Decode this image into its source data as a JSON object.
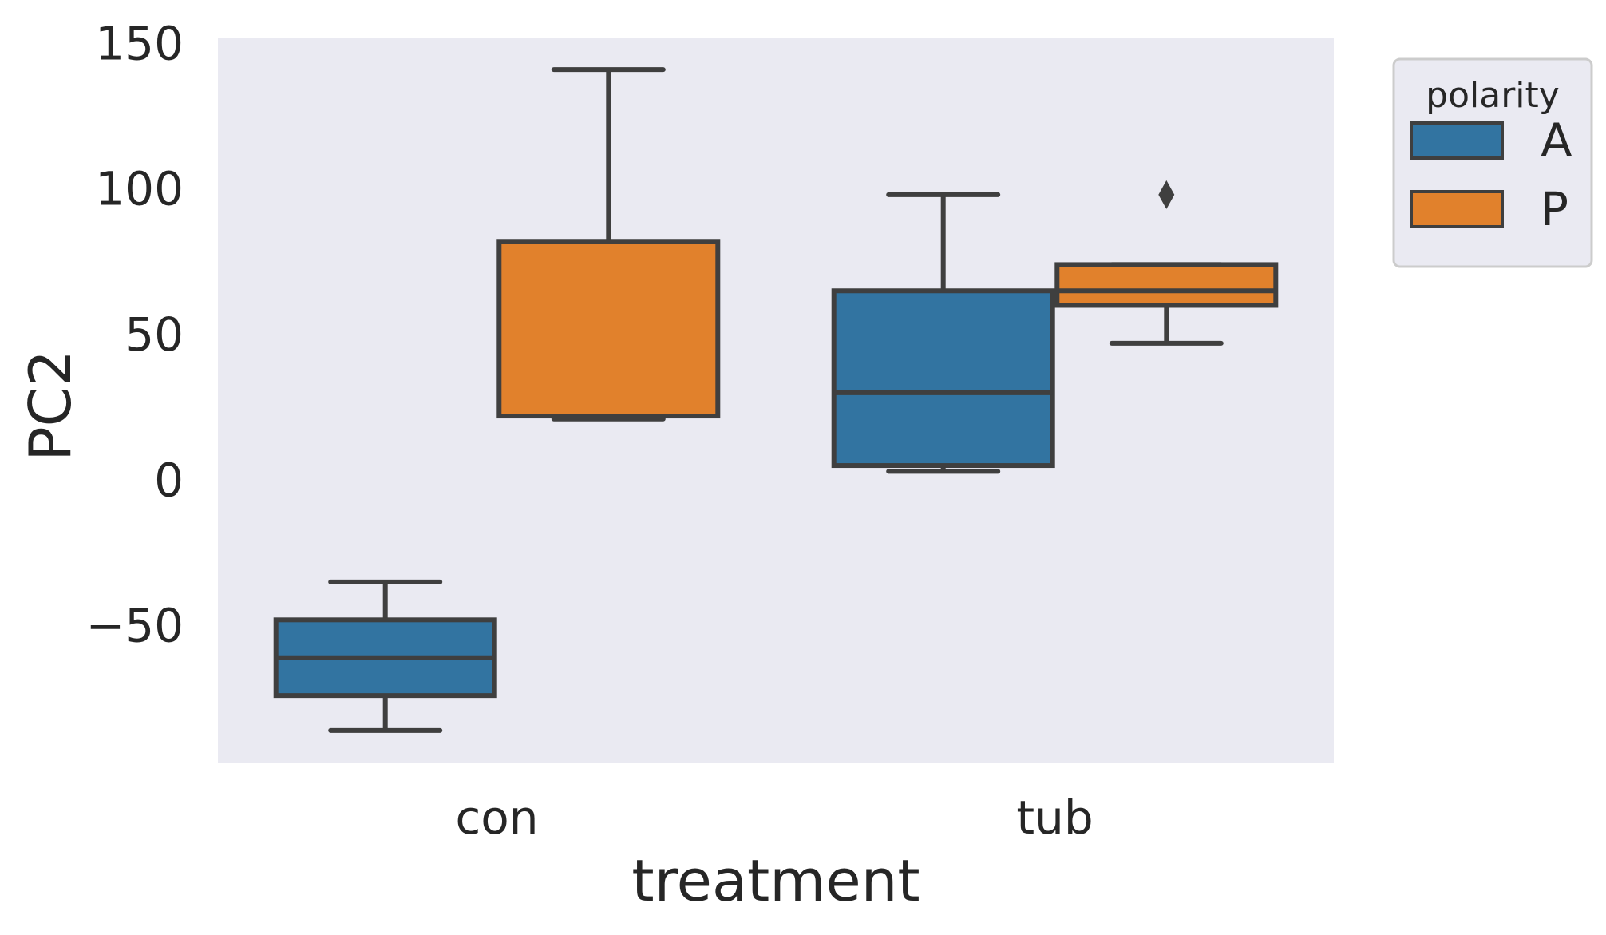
{
  "chart_data": {
    "type": "box",
    "xlabel": "treatment",
    "ylabel": "PC2",
    "categories": [
      "con",
      "tub"
    ],
    "ylim": [
      -97,
      152
    ],
    "yticks": [
      150,
      100,
      50,
      0,
      -50
    ],
    "ytick_labels": [
      "150",
      "100",
      "50",
      "0",
      "−50"
    ],
    "grid": false,
    "legend": {
      "title": "polarity",
      "position": "outside-right-top"
    },
    "series": [
      {
        "name": "A",
        "color": "#3274a1",
        "boxes": [
          {
            "category": "con",
            "whisker_low": -86,
            "q1": -74,
            "median": -61,
            "q3": -48,
            "whisker_high": -35,
            "outliers": []
          },
          {
            "category": "tub",
            "whisker_low": 3,
            "q1": 5,
            "median": 30,
            "q3": 65,
            "whisker_high": 98,
            "outliers": []
          }
        ]
      },
      {
        "name": "P",
        "color": "#e1812c",
        "boxes": [
          {
            "category": "con",
            "whisker_low": 21,
            "q1": 22,
            "median": 22,
            "q3": 82,
            "whisker_high": 141,
            "outliers": []
          },
          {
            "category": "tub",
            "whisker_low": 47,
            "q1": 60,
            "median": 65,
            "q3": 74,
            "whisker_high": 74,
            "outliers": [
              98
            ]
          }
        ]
      }
    ]
  }
}
